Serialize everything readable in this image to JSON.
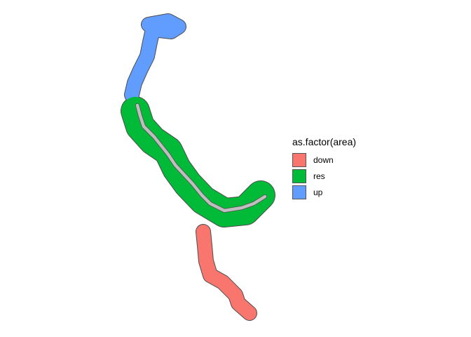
{
  "chart_data": {
    "type": "map",
    "legend": {
      "title": "as.factor(area)",
      "position": "right",
      "entries": [
        {
          "label": "down",
          "color": "#F8766D"
        },
        {
          "label": "res",
          "color": "#00BA38"
        },
        {
          "label": "up",
          "color": "#619CFF"
        }
      ]
    },
    "river_color": "#BEBEBE",
    "outline_color": "#4D4D4D",
    "background": "#FFFFFF"
  }
}
